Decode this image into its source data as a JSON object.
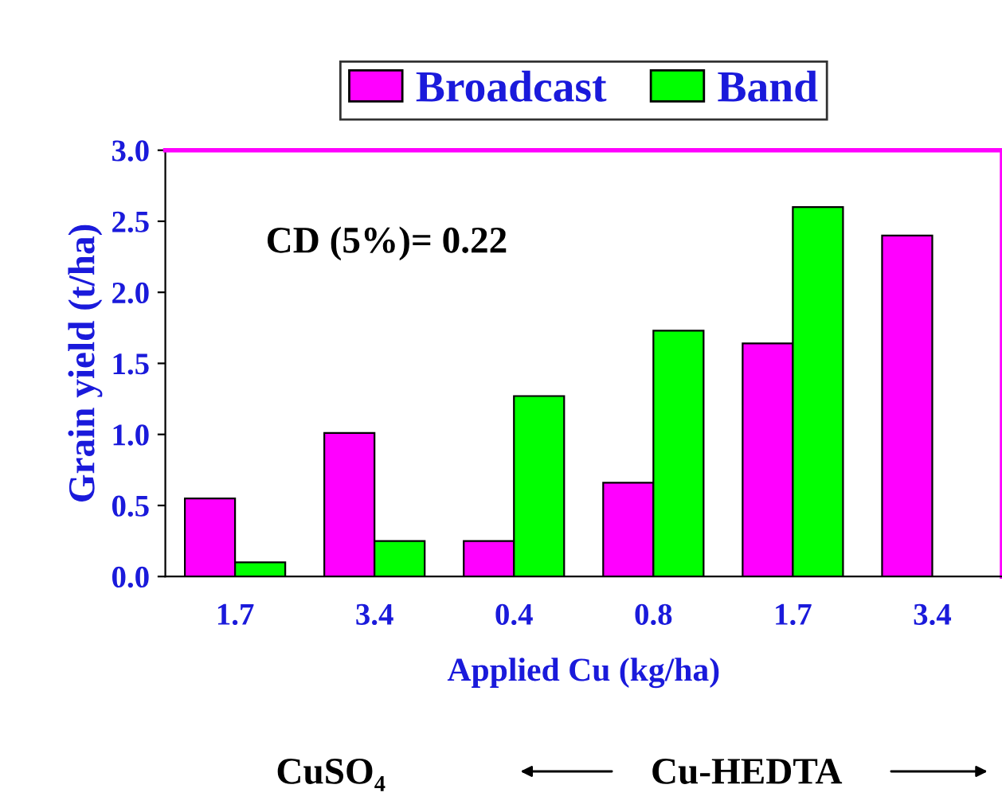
{
  "chart_data": {
    "type": "bar",
    "xlabel": "Applied Cu (kg/ha)",
    "ylabel": "Grain yield (t/ha)",
    "categories": [
      "1.7",
      "3.4",
      "0.4",
      "0.8",
      "1.7",
      "3.4"
    ],
    "series": [
      {
        "name": "Broadcast",
        "color": "#ff00ff",
        "values": [
          0.55,
          1.01,
          0.25,
          0.66,
          1.64,
          2.4
        ]
      },
      {
        "name": "Band",
        "color": "#00ff00",
        "values": [
          0.1,
          0.25,
          1.27,
          1.73,
          2.6,
          null
        ]
      }
    ],
    "ylim": [
      0,
      3
    ],
    "yticks": [
      {
        "value": 0,
        "label": "0.0"
      },
      {
        "value": 0.5,
        "label": "0.5"
      },
      {
        "value": 1,
        "label": "1.0"
      },
      {
        "value": 1.5,
        "label": "1.5"
      },
      {
        "value": 2,
        "label": "2.0"
      },
      {
        "value": 2.5,
        "label": "2.5"
      },
      {
        "value": 3,
        "label": "3.0"
      }
    ],
    "legend": "top",
    "annotations": [
      "CD (5%)= 0.22",
      "CuSO₄",
      "Cu-HEDTA"
    ]
  }
}
